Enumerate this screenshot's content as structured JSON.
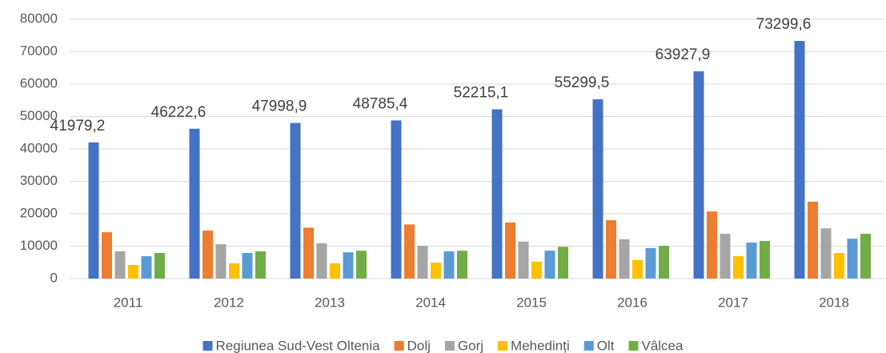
{
  "chart_data": {
    "type": "bar",
    "categories": [
      "2011",
      "2012",
      "2013",
      "2014",
      "2015",
      "2016",
      "2017",
      "2018"
    ],
    "series": [
      {
        "name": "Regiunea Sud-Vest Oltenia",
        "color": "#4472c4",
        "values": [
          41979.2,
          46222.6,
          47998.9,
          48785.4,
          52215.1,
          55299.5,
          63927.9,
          73299.6
        ],
        "value_labels": [
          "41979,2",
          "46222,6",
          "47998,9",
          "48785,4",
          "52215,1",
          "55299,5",
          "63927,9",
          "73299,6"
        ]
      },
      {
        "name": "Dolj",
        "color": "#ed7d31",
        "values": [
          14300,
          14800,
          15700,
          16700,
          17300,
          18000,
          20700,
          23700
        ]
      },
      {
        "name": "Gorj",
        "color": "#a5a5a5",
        "values": [
          8400,
          10600,
          10900,
          10100,
          11400,
          12100,
          13800,
          15500
        ]
      },
      {
        "name": "Mehedinți",
        "color": "#ffc000",
        "values": [
          4200,
          4700,
          4700,
          4900,
          5200,
          5700,
          6900,
          7900
        ]
      },
      {
        "name": "Olt",
        "color": "#5b9bd5",
        "values": [
          6900,
          7900,
          8100,
          8400,
          8600,
          9400,
          11100,
          12300
        ]
      },
      {
        "name": "Vâlcea",
        "color": "#70ad47",
        "values": [
          7900,
          8400,
          8600,
          8600,
          9800,
          10100,
          11600,
          13800
        ]
      }
    ],
    "ylim": [
      0,
      80000
    ],
    "yticks": [
      0,
      10000,
      20000,
      30000,
      40000,
      50000,
      60000,
      70000,
      80000
    ],
    "grid": true,
    "legend": "bottom"
  }
}
